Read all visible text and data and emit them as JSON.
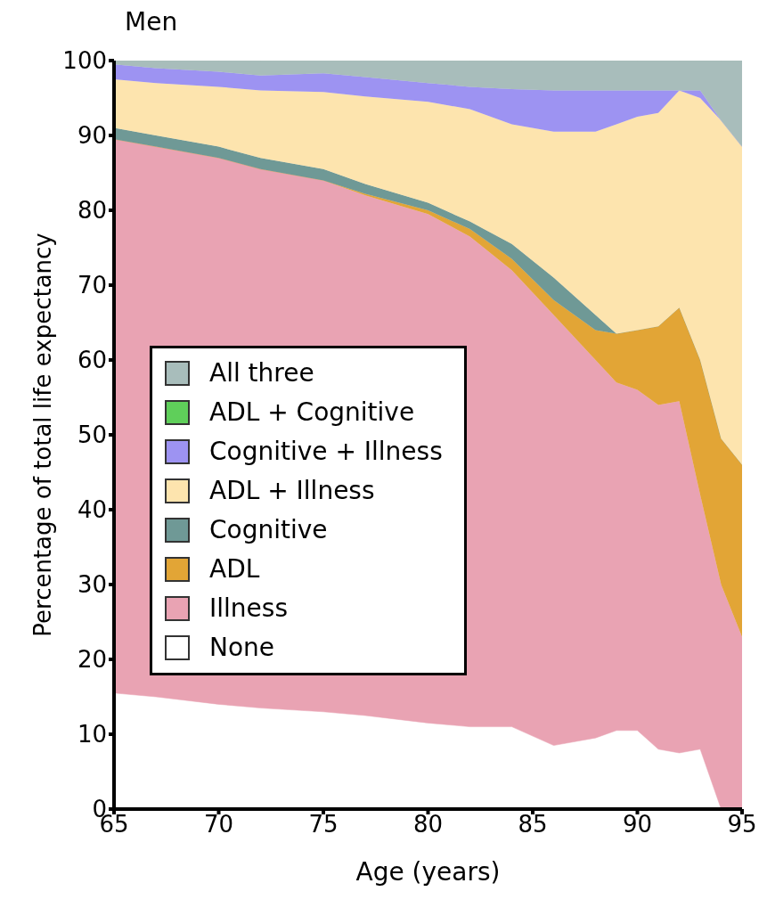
{
  "chart_data": {
    "type": "area",
    "stacked": true,
    "title": "Men",
    "xlabel": "Age (years)",
    "ylabel": "Percentage of total life expectancy",
    "x": [
      65,
      67,
      70,
      72,
      75,
      77,
      80,
      82,
      84,
      86,
      88,
      89,
      90,
      91,
      92,
      93,
      94,
      95
    ],
    "xlim": [
      65,
      95
    ],
    "xticks": [
      65,
      70,
      75,
      80,
      85,
      90,
      95
    ],
    "ylim": [
      0,
      100
    ],
    "yticks": [
      0,
      10,
      20,
      30,
      40,
      50,
      60,
      70,
      80,
      90,
      100
    ],
    "grid": false,
    "legend": "left",
    "marker": "none",
    "series": [
      {
        "name": "None",
        "color": "#ffffff",
        "values": [
          15.5,
          15,
          14,
          13.5,
          13,
          12.5,
          11.5,
          11,
          11,
          8.5,
          9.5,
          10.5,
          10.5,
          8,
          7.5,
          8,
          0,
          0
        ]
      },
      {
        "name": "Illness",
        "color": "#e9a3b3",
        "values": [
          74,
          73.5,
          73,
          72,
          71,
          69.5,
          68,
          65.5,
          61,
          57.5,
          50.5,
          46.5,
          45.5,
          46,
          47,
          34,
          30,
          23
        ]
      },
      {
        "name": "ADL",
        "color": "#e2a536",
        "values": [
          0,
          0,
          0,
          0,
          0,
          0.2,
          0.5,
          1,
          1.5,
          2,
          4,
          6.5,
          8,
          10.5,
          12.5,
          18,
          19.5,
          23
        ]
      },
      {
        "name": "Cognitive",
        "color": "#6f9996",
        "values": [
          1.5,
          1.5,
          1.5,
          1.5,
          1.5,
          1.3,
          1,
          1,
          2,
          3,
          2,
          0,
          0,
          0,
          0,
          0,
          0,
          0
        ]
      },
      {
        "name": "ADL + Illness",
        "color": "#fde4ae",
        "values": [
          6.5,
          7,
          8,
          9,
          10.3,
          11.7,
          13.5,
          15,
          16,
          19.5,
          24.5,
          28,
          28.5,
          28.5,
          29,
          35,
          42.5,
          42.5
        ]
      },
      {
        "name": "Cognitive + Illness",
        "color": "#9d93f2",
        "values": [
          2,
          2,
          2,
          2,
          2.5,
          2.6,
          2.5,
          3,
          4.7,
          5.5,
          5.5,
          4.5,
          3.5,
          3,
          0,
          1,
          0,
          0
        ]
      },
      {
        "name": "ADL + Cognitive",
        "color": "#5fcf5a",
        "values": [
          null,
          null,
          null,
          null,
          null,
          null,
          null,
          null,
          null,
          null,
          null,
          null,
          null,
          null,
          null,
          null,
          null,
          null
        ]
      },
      {
        "name": "All three",
        "color": "#a8bdbb",
        "values": [
          0.5,
          1,
          1.5,
          2,
          1.7,
          2.2,
          3,
          3.5,
          3.8,
          4,
          4,
          4,
          4,
          4,
          4,
          4,
          8,
          11.5
        ]
      }
    ]
  }
}
